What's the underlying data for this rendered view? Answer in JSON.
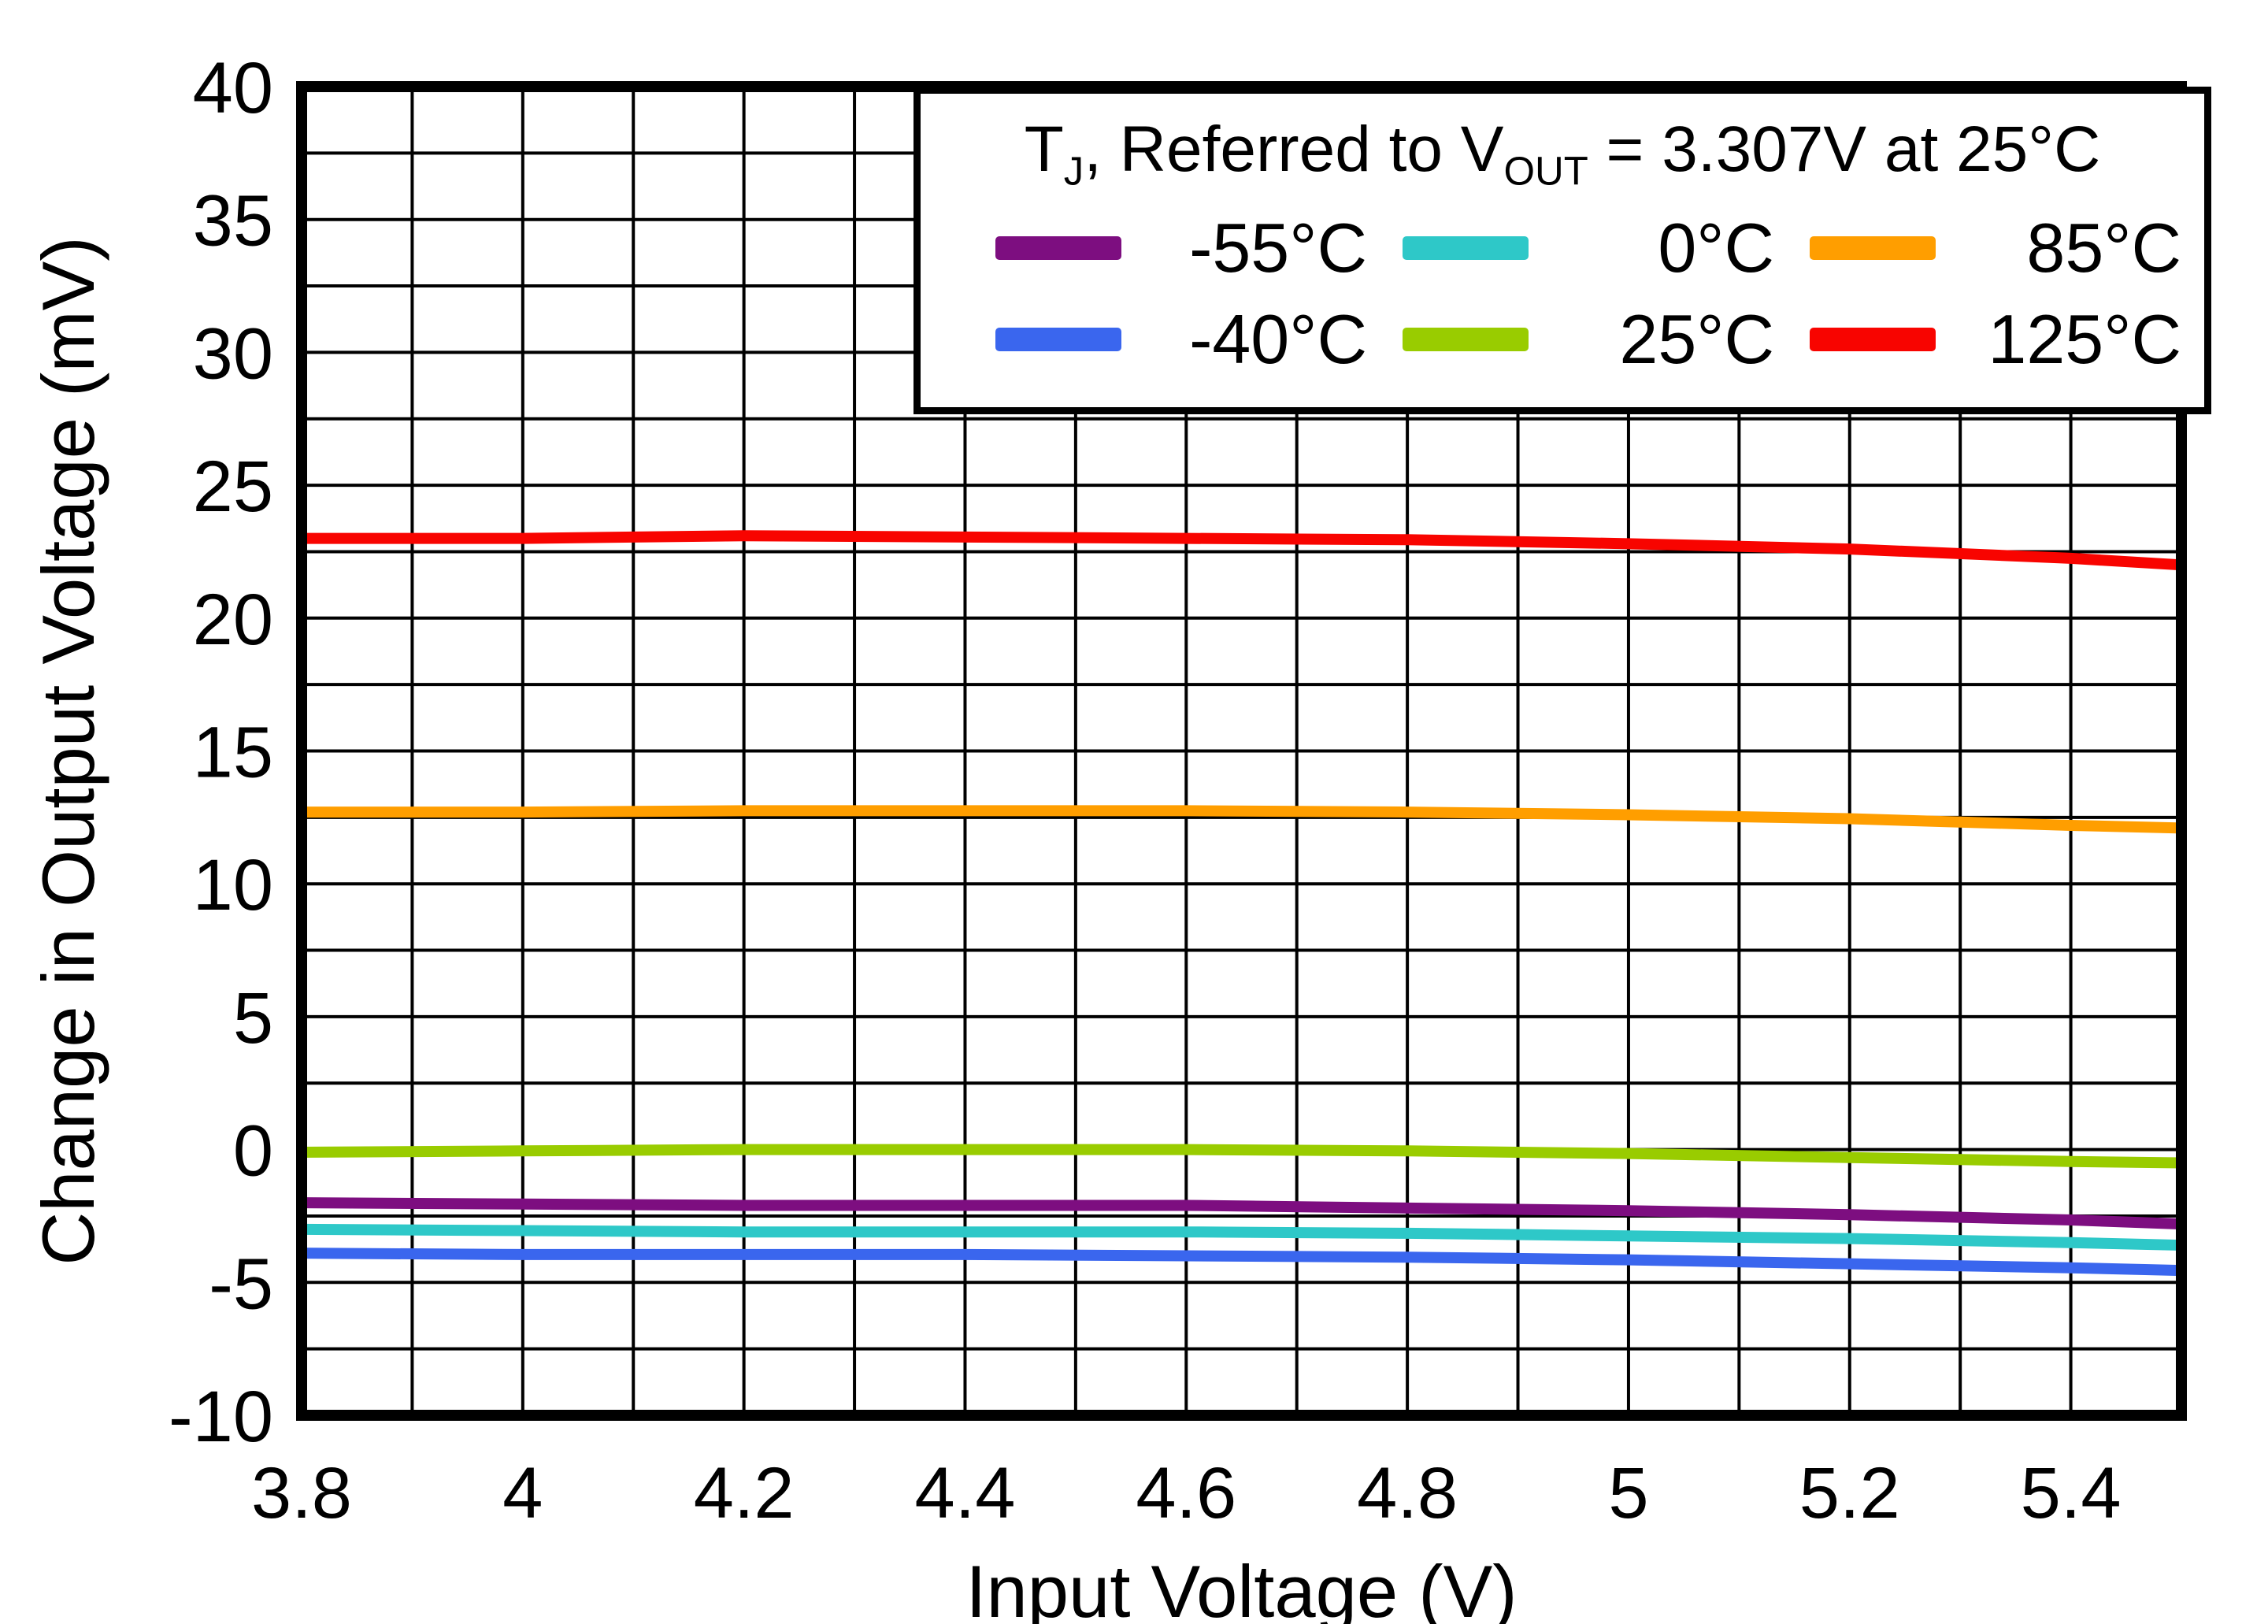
{
  "legend": {
    "title": [
      "T",
      "J",
      ", Referred to V",
      "OUT",
      " = 3.307V at 25°C"
    ]
  },
  "chart_data": {
    "type": "line",
    "title": "",
    "xlabel": "Input Voltage (V)",
    "ylabel": "Change in Output Voltage (mV)",
    "xlim": [
      3.8,
      5.5
    ],
    "ylim": [
      -10,
      40
    ],
    "x_minor_step": 0.1,
    "y_minor_step": 2.5,
    "grid": "major-and-minor, black, on",
    "legend_position": "top-right",
    "xticks": {
      "values": [
        3.8,
        4,
        4.2,
        4.4,
        4.6,
        4.8,
        5,
        5.2,
        5.4
      ],
      "labels": [
        "3.8",
        "4",
        "4.2",
        "4.4",
        "4.6",
        "4.8",
        "5",
        "5.2",
        "5.4"
      ]
    },
    "yticks": {
      "values": [
        40,
        35,
        30,
        25,
        20,
        15,
        10,
        5,
        0,
        -5,
        -10
      ],
      "labels": [
        "40",
        "35",
        "30",
        "25",
        "20",
        "15",
        "10",
        "5",
        "0",
        "-5",
        "-10"
      ]
    },
    "x": [
      3.8,
      4.0,
      4.2,
      4.4,
      4.6,
      4.8,
      5.0,
      5.2,
      5.4,
      5.5
    ],
    "series": [
      {
        "name": "-55°C",
        "color": "#7D0E80",
        "values": [
          -2.0,
          -2.05,
          -2.1,
          -2.1,
          -2.1,
          -2.2,
          -2.3,
          -2.45,
          -2.65,
          -2.8
        ]
      },
      {
        "name": "-40°C",
        "color": "#3A66EE",
        "values": [
          -3.9,
          -3.95,
          -3.95,
          -3.95,
          -4.0,
          -4.05,
          -4.15,
          -4.3,
          -4.45,
          -4.55
        ]
      },
      {
        "name": "0°C",
        "color": "#2EC8C8",
        "values": [
          -3.0,
          -3.05,
          -3.1,
          -3.1,
          -3.1,
          -3.15,
          -3.25,
          -3.35,
          -3.5,
          -3.6
        ]
      },
      {
        "name": "25°C",
        "color": "#99CC00",
        "values": [
          -0.1,
          -0.05,
          0.0,
          0.0,
          0.0,
          -0.05,
          -0.15,
          -0.3,
          -0.45,
          -0.5
        ]
      },
      {
        "name": "85°C",
        "color": "#FF9E00",
        "values": [
          12.7,
          12.7,
          12.75,
          12.75,
          12.75,
          12.7,
          12.6,
          12.45,
          12.2,
          12.1
        ]
      },
      {
        "name": "125°C",
        "color": "#F80400",
        "values": [
          23.0,
          23.0,
          23.1,
          23.05,
          23.0,
          22.95,
          22.8,
          22.6,
          22.25,
          22.0
        ]
      }
    ]
  }
}
